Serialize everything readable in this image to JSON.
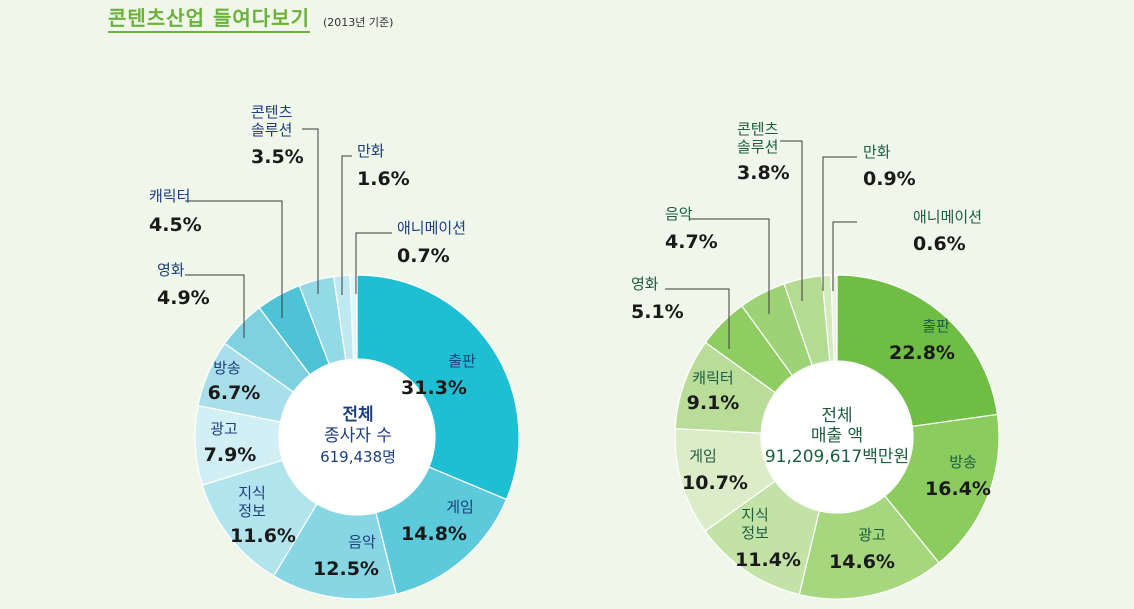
{
  "title": "콘텐츠산업 들여다보기",
  "subtitle": "(2013년 기준)",
  "chart_data": [
    {
      "type": "pie",
      "variant": "donut",
      "center_label": [
        "전체",
        "종사자 수",
        "619,438명"
      ],
      "slices": [
        {
          "name": "출판",
          "value": 31.3,
          "label": "31.3%",
          "color": "#1fbfd3"
        },
        {
          "name": "게임",
          "value": 14.8,
          "label": "14.8%",
          "color": "#5ccadb"
        },
        {
          "name": "음악",
          "value": 12.5,
          "label": "12.5%",
          "color": "#86d6e4"
        },
        {
          "name": "지식\n정보",
          "value": 11.6,
          "label": "11.6%",
          "color": "#b2e4ee"
        },
        {
          "name": "광고",
          "value": 7.9,
          "label": "7.9%",
          "color": "#d2eff5"
        },
        {
          "name": "방송",
          "value": 6.7,
          "label": "6.7%",
          "color": "#a9dfea"
        },
        {
          "name": "영화",
          "value": 4.9,
          "label": "4.9%",
          "color": "#80d1e0"
        },
        {
          "name": "캐릭터",
          "value": 4.5,
          "label": "4.5%",
          "color": "#4ec3d5"
        },
        {
          "name": "콘텐츠\n솔루션",
          "value": 3.5,
          "label": "3.5%",
          "color": "#94d9e6"
        },
        {
          "name": "만화",
          "value": 1.6,
          "label": "1.6%",
          "color": "#bfe8f0"
        },
        {
          "name": "애니메이션",
          "value": 0.7,
          "label": "0.7%",
          "color": "#e2f5f8"
        }
      ],
      "text_color": "#1c3f7e",
      "center_color": "#1c3f7e"
    },
    {
      "type": "pie",
      "variant": "donut",
      "center_label": [
        "전체",
        "매출 액",
        "91,209,617백만원"
      ],
      "slices": [
        {
          "name": "출판",
          "value": 22.8,
          "label": "22.8%",
          "color": "#6fbd44"
        },
        {
          "name": "방송",
          "value": 16.4,
          "label": "16.4%",
          "color": "#8ccc5e"
        },
        {
          "name": "광고",
          "value": 14.6,
          "label": "14.6%",
          "color": "#a6d77f"
        },
        {
          "name": "지식\n정보",
          "value": 11.4,
          "label": "11.4%",
          "color": "#c3e3a6"
        },
        {
          "name": "게임",
          "value": 10.7,
          "label": "10.7%",
          "color": "#dcecc8"
        },
        {
          "name": "캐릭터",
          "value": 9.1,
          "label": "9.1%",
          "color": "#b9dc98"
        },
        {
          "name": "영화",
          "value": 5.1,
          "label": "5.1%",
          "color": "#8fcc62"
        },
        {
          "name": "음악",
          "value": 4.7,
          "label": "4.7%",
          "color": "#9ed276"
        },
        {
          "name": "콘텐츠\n솔루션",
          "value": 3.8,
          "label": "3.8%",
          "color": "#b4db93"
        },
        {
          "name": "만화",
          "value": 0.9,
          "label": "0.9%",
          "color": "#d3eabd"
        },
        {
          "name": "애니메이션",
          "value": 0.6,
          "label": "0.6%",
          "color": "#e9f4de"
        }
      ],
      "text_color": "#1b5e40",
      "center_color": "#1b5e40"
    }
  ]
}
